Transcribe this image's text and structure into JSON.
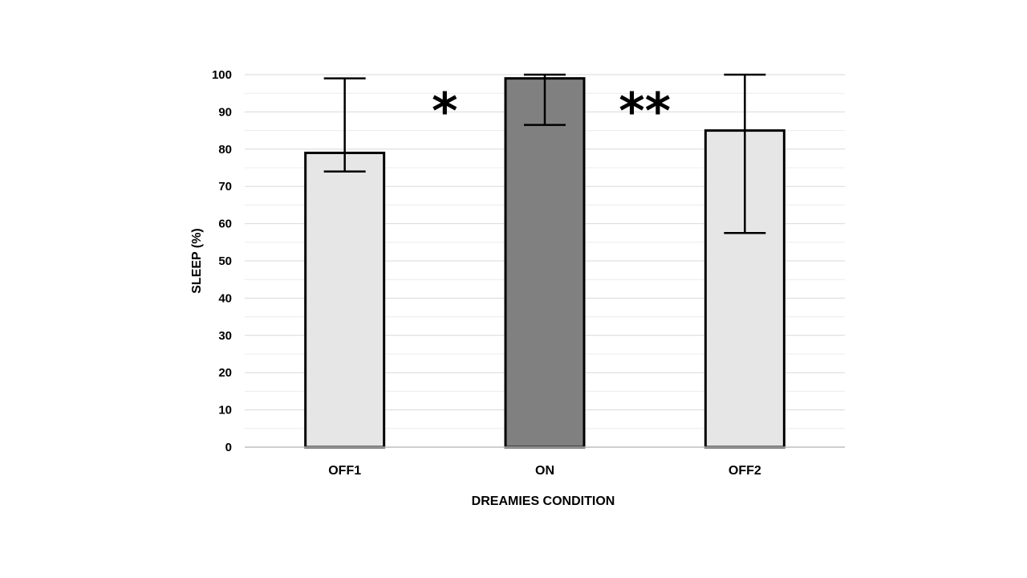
{
  "chart_data": {
    "type": "bar",
    "categories": [
      "OFF1",
      "ON",
      "OFF2"
    ],
    "values": [
      79,
      99,
      85
    ],
    "error_high": [
      99,
      100,
      100
    ],
    "error_low": [
      74,
      86.5,
      57.5
    ],
    "bar_colors": [
      "#e7e6e6",
      "#808080",
      "#e7e6e6"
    ],
    "title": "",
    "xlabel": "DREAMIES CONDITION",
    "ylabel": "SLEEP (%)",
    "ylim": [
      0,
      100
    ],
    "yticks": [
      "0",
      "10",
      "20",
      "30",
      "40",
      "50",
      "60",
      "70",
      "80",
      "90",
      "100"
    ],
    "grid": true,
    "legend": "none",
    "annotations": [
      {
        "text": "*",
        "between": [
          "OFF1",
          "ON"
        ]
      },
      {
        "text": "**",
        "between": [
          "ON",
          "OFF2"
        ]
      }
    ]
  }
}
